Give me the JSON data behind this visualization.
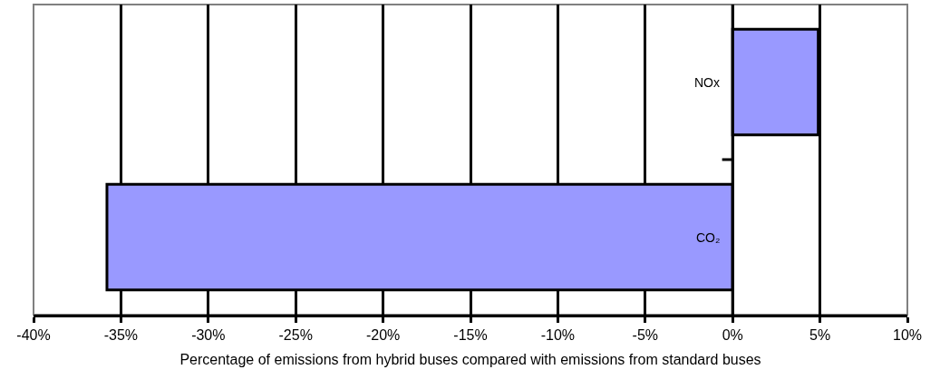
{
  "chart_data": {
    "type": "bar",
    "orientation": "horizontal",
    "xlabel": "Percentage of emissions from hybrid buses compared with emissions from standard buses",
    "categories": [
      "NOx",
      "CO₂"
    ],
    "values": [
      4.9,
      -35.8
    ],
    "color": "#9999ff",
    "xlim": [
      -40,
      10
    ],
    "xticks": [
      {
        "value": -40,
        "label": "-40%"
      },
      {
        "value": -35,
        "label": "-35%"
      },
      {
        "value": -30,
        "label": "-30%"
      },
      {
        "value": -25,
        "label": "-25%"
      },
      {
        "value": -20,
        "label": "-20%"
      },
      {
        "value": -15,
        "label": "-15%"
      },
      {
        "value": -10,
        "label": "-10%"
      },
      {
        "value": -5,
        "label": "-5%"
      },
      {
        "value": 0,
        "label": "0%"
      },
      {
        "value": 5,
        "label": "5%"
      },
      {
        "value": 10,
        "label": "10%"
      }
    ],
    "grid": "x"
  }
}
